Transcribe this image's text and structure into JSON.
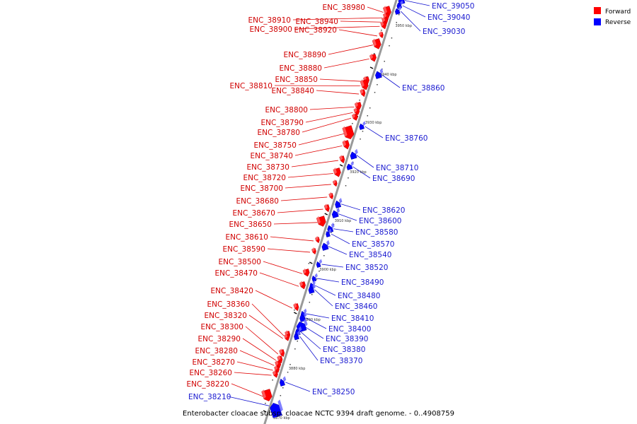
{
  "caption": "Enterobacter cloacae subsp. cloacae NCTC 9394 draft genome. - 0..4908759",
  "legend": [
    {
      "label": "Forward",
      "color": "#ff0000"
    },
    {
      "label": "Reverse",
      "color": "#0000ff"
    }
  ],
  "colors": {
    "forward": "#ff0000",
    "forward_dark": "#b30000",
    "reverse": "#0000ff",
    "reverse_dark": "#0000a0",
    "backbone": "#999999",
    "connector_forward": "#e00000",
    "connector_reverse": "#1010d0"
  },
  "ticks": [
    "3950 kbp",
    "3940 kbp",
    "3930 kbp",
    "3920 kbp",
    "3910 kbp",
    "3900 kbp",
    "3890 kbp",
    "3880 kbp",
    "3870 kbp"
  ],
  "forward_genes": [
    "ENC_38980",
    "ENC_38910",
    "ENC_38940",
    "ENC_38900",
    "ENC_38920",
    "ENC_38890",
    "ENC_38880",
    "ENC_38850",
    "ENC_38810",
    "ENC_38840",
    "ENC_38800",
    "ENC_38790",
    "ENC_38780",
    "ENC_38750",
    "ENC_38740",
    "ENC_38730",
    "ENC_38720",
    "ENC_38700",
    "ENC_38680",
    "ENC_38670",
    "ENC_38650",
    "ENC_38610",
    "ENC_38590",
    "ENC_38500",
    "ENC_38470",
    "ENC_38420",
    "ENC_38360",
    "ENC_38320",
    "ENC_38300",
    "ENC_38290",
    "ENC_38280",
    "ENC_38270",
    "ENC_38260",
    "ENC_38220"
  ],
  "reverse_genes": [
    "ENC_39050",
    "ENC_39040",
    "ENC_39030",
    "ENC_38860",
    "ENC_38760",
    "ENC_38710",
    "ENC_38690",
    "ENC_38620",
    "ENC_38600",
    "ENC_38580",
    "ENC_38570",
    "ENC_38540",
    "ENC_38520",
    "ENC_38490",
    "ENC_38480",
    "ENC_38460",
    "ENC_38410",
    "ENC_38400",
    "ENC_38390",
    "ENC_38380",
    "ENC_38370",
    "ENC_38250",
    "ENC_38210"
  ]
}
